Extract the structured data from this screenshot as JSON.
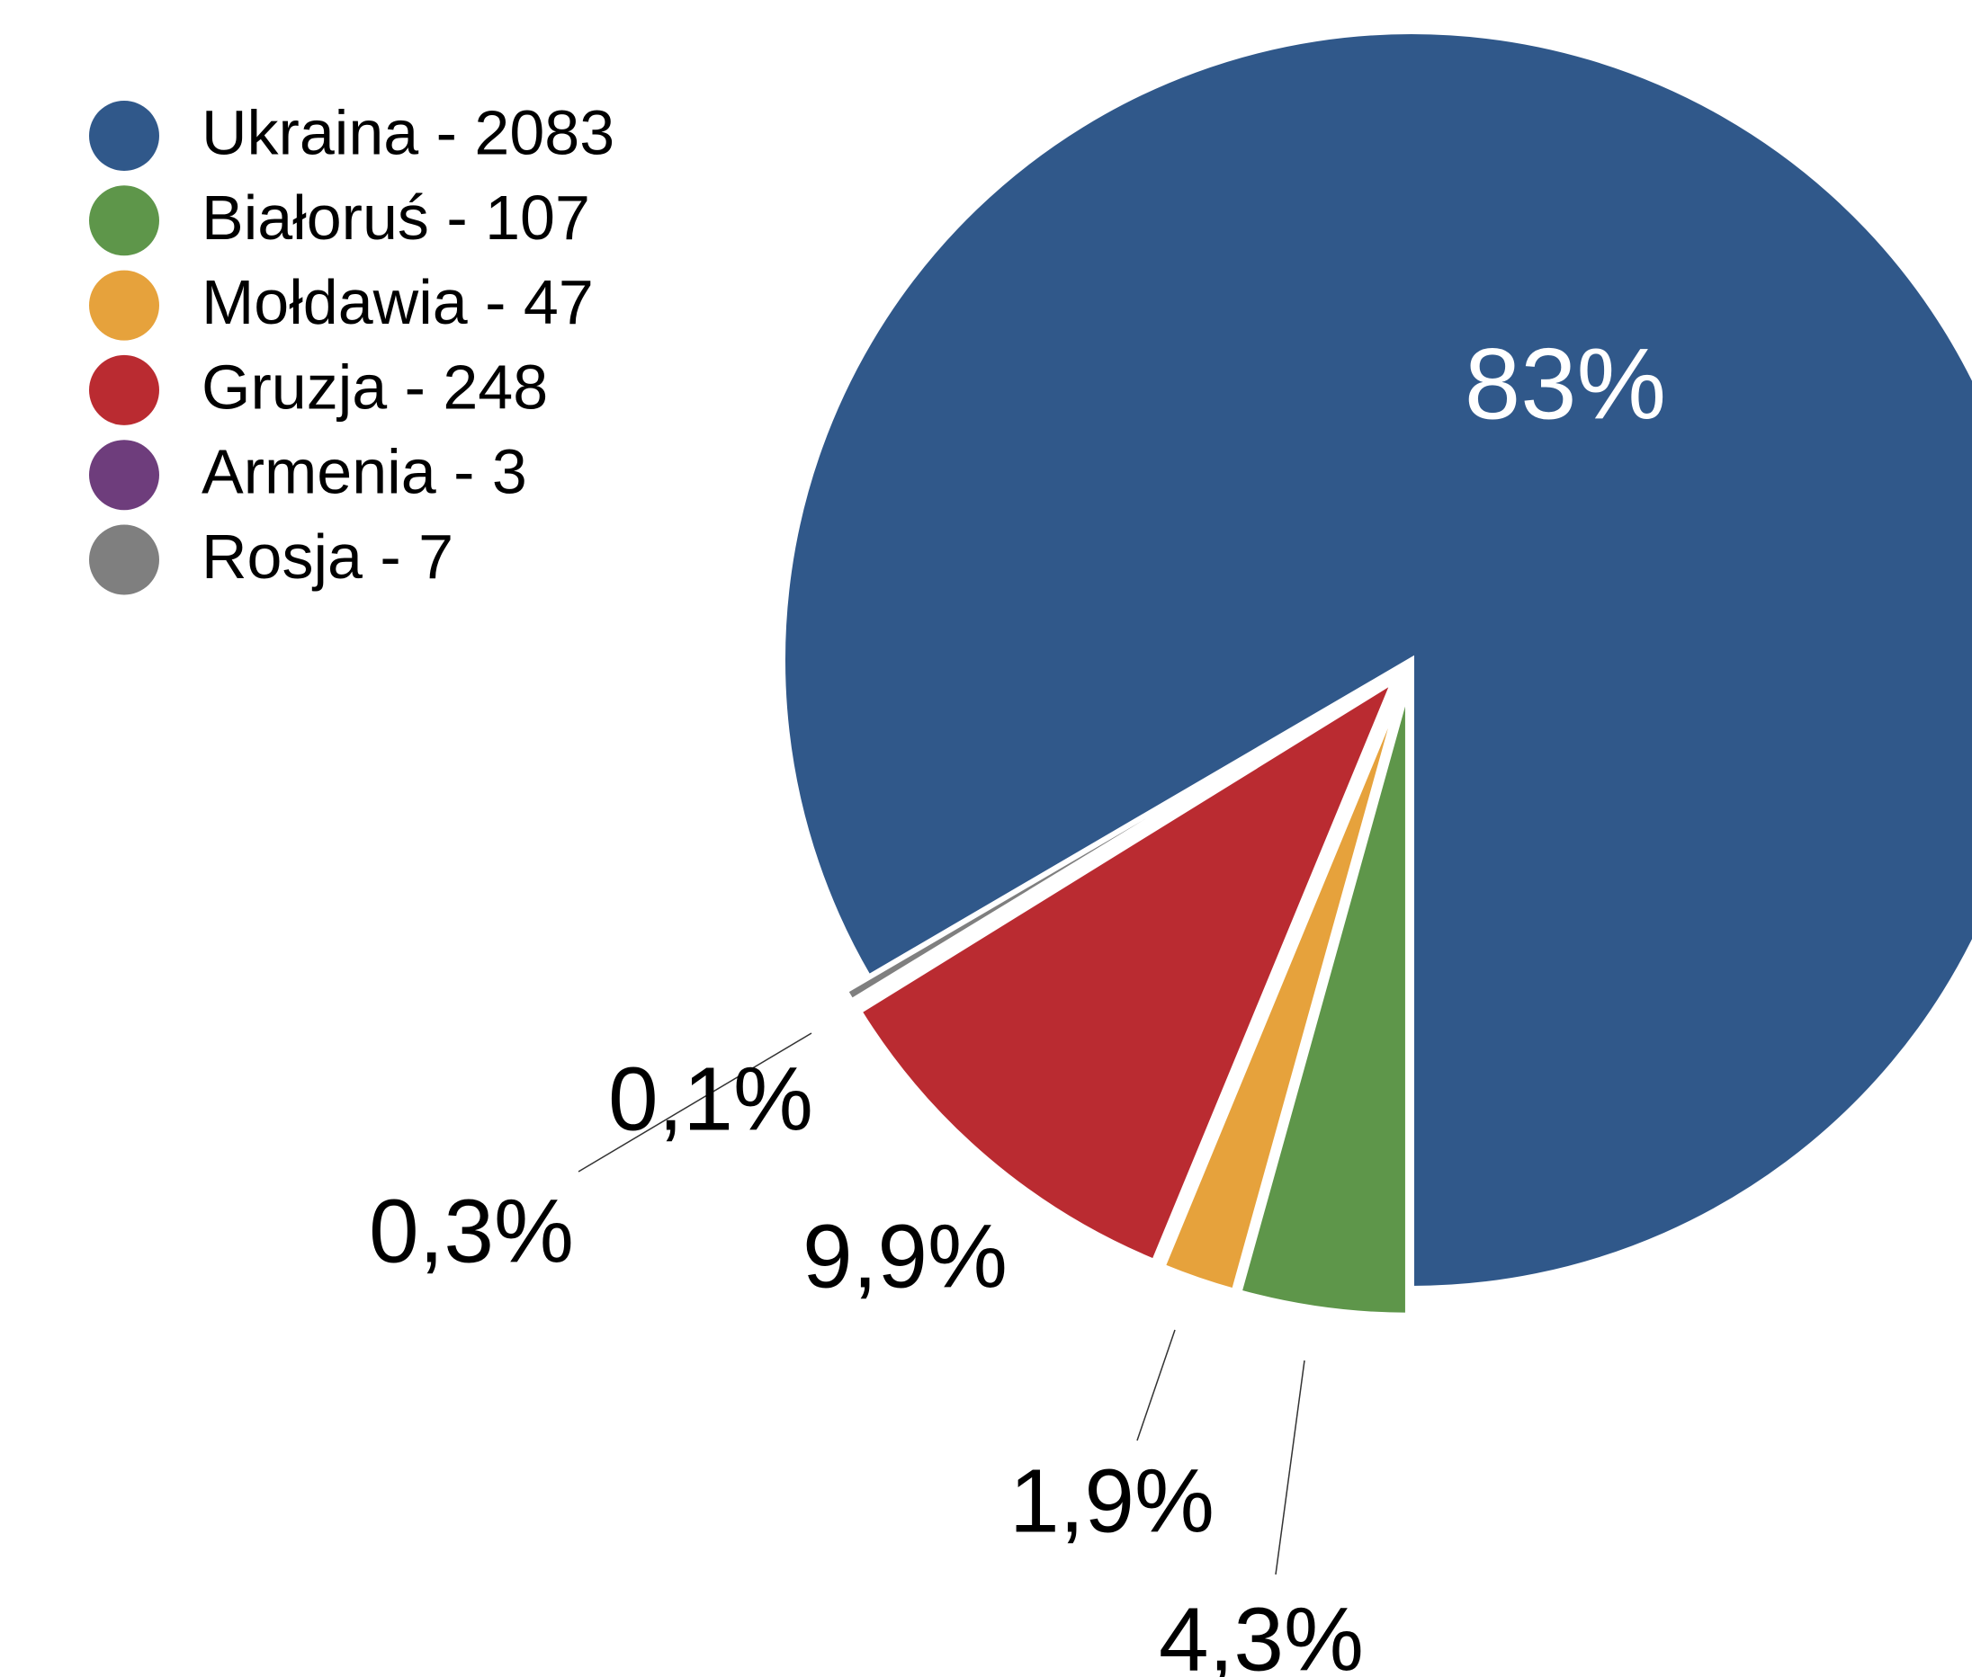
{
  "chart_data": {
    "type": "pie",
    "series": [
      {
        "name": "Ukraina - 2083",
        "color": "#30588a",
        "values": [
          83
        ],
        "value_labels": [
          "83%"
        ]
      },
      {
        "name": "Białoruś - 107",
        "color": "#5e964a",
        "values": [
          4.3
        ],
        "value_labels": [
          "4,3%"
        ]
      },
      {
        "name": "Mołdawia - 47",
        "color": "#e6a23c",
        "values": [
          1.9
        ],
        "value_labels": [
          "1,9%"
        ]
      },
      {
        "name": "Gruzja - 248",
        "color": "#ba2b31",
        "values": [
          9.9
        ],
        "value_labels": [
          "9,9%"
        ]
      },
      {
        "name": "Armenia - 3",
        "color": "#6e3d7c",
        "values": [
          0.1
        ],
        "value_labels": [
          "0,1%"
        ]
      },
      {
        "name": "Rosja - 7",
        "color": "#7f7f7f",
        "values": [
          0.3
        ],
        "value_labels": [
          "0,3%"
        ]
      }
    ],
    "legend": "top-left"
  }
}
